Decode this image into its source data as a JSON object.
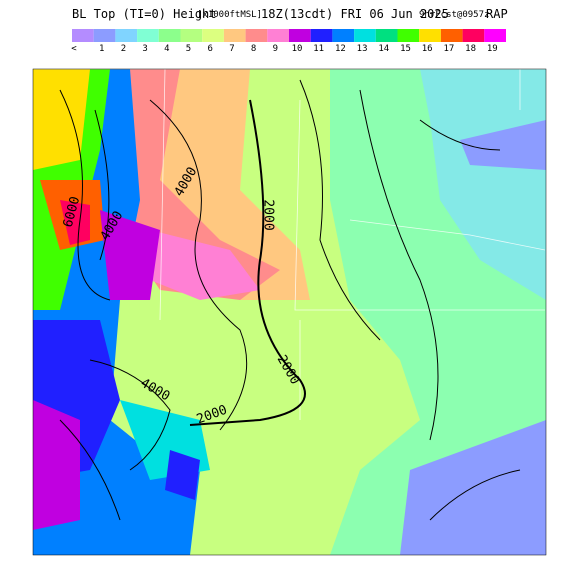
{
  "header": {
    "title": "BL Top (TI=0) Height",
    "units": "[x1000ftMSL]",
    "valid": "18Z(13cdt) FRI 06 Jun 2025",
    "forecast": "9hrFcst@0957z",
    "model": "RAP"
  },
  "legend": {
    "items": [
      {
        "label": "<",
        "color": "#b48cff"
      },
      {
        "label": "1",
        "color": "#8c9cff"
      },
      {
        "label": "2",
        "color": "#80d4ff"
      },
      {
        "label": "3",
        "color": "#80ffd4"
      },
      {
        "label": "4",
        "color": "#8cff8c"
      },
      {
        "label": "5",
        "color": "#b4ff80"
      },
      {
        "label": "6",
        "color": "#dcff80"
      },
      {
        "label": "7",
        "color": "#ffc880"
      },
      {
        "label": "8",
        "color": "#ff8c8c"
      },
      {
        "label": "9",
        "color": "#ff80d4"
      },
      {
        "label": "10",
        "color": "#c000e0"
      },
      {
        "label": "11",
        "color": "#2020ff"
      },
      {
        "label": "12",
        "color": "#0080ff"
      },
      {
        "label": "13",
        "color": "#00e0e0"
      },
      {
        "label": "14",
        "color": "#00e080"
      },
      {
        "label": "15",
        "color": "#40ff00"
      },
      {
        "label": "16",
        "color": "#ffe000"
      },
      {
        "label": "17",
        "color": "#ff6000"
      },
      {
        "label": "18",
        "color": "#ff0060"
      },
      {
        "label": "19",
        "color": "#ff00ff"
      }
    ]
  },
  "map": {
    "contour_labels": [
      "6000",
      "4000",
      "4000",
      "2000",
      "2000",
      "4000",
      "2000"
    ]
  }
}
